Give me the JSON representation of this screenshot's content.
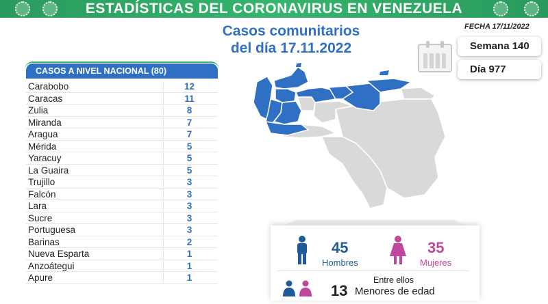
{
  "header": {
    "title": "ESTADÍSTICAS DEL CORONAVIRUS EN VENEZUELA",
    "color": "#35b56e"
  },
  "subtitle": {
    "line1": "Casos comunitarios",
    "line2": "del día 17.11.2022"
  },
  "date_label": "FECHA 17/11/2022",
  "calendar": {
    "icon": "calendar-icon"
  },
  "week_label": "Semana 140",
  "day_label": "Día 977",
  "table": {
    "header": "CASOS A NIVEL NACIONAL  (80)",
    "rows": [
      {
        "state": "Carabobo",
        "cases": "12"
      },
      {
        "state": "Caracas",
        "cases": "11"
      },
      {
        "state": "Zulia",
        "cases": "8"
      },
      {
        "state": "Miranda",
        "cases": "7"
      },
      {
        "state": "Aragua",
        "cases": "7"
      },
      {
        "state": "Mérida",
        "cases": "5"
      },
      {
        "state": "Yaracuy",
        "cases": "5"
      },
      {
        "state": "La Guaira",
        "cases": "5"
      },
      {
        "state": "Trujillo",
        "cases": "3"
      },
      {
        "state": "Falcón",
        "cases": "3"
      },
      {
        "state": "Lara",
        "cases": "3"
      },
      {
        "state": "Sucre",
        "cases": "3"
      },
      {
        "state": "Portuguesa",
        "cases": "3"
      },
      {
        "state": "Barinas",
        "cases": "2"
      },
      {
        "state": "Nueva Esparta",
        "cases": "1"
      },
      {
        "state": "Anzoátegui",
        "cases": "1"
      },
      {
        "state": "Apure",
        "cases": "1"
      }
    ]
  },
  "map": {
    "highlight_color": "#2f6fc4",
    "base_color": "#d9d9d9"
  },
  "gender": {
    "men_count": "45",
    "men_label": "Hombres",
    "men_color": "#1f5a9a",
    "men_icon": "man-icon",
    "women_count": "35",
    "women_label": "Mujeres",
    "women_color": "#c0479c",
    "women_icon": "woman-icon",
    "minors_intro": "Entre ellos",
    "minors_count": "13",
    "minors_label": "Menores de edad",
    "minors_icon": "children-icon"
  }
}
